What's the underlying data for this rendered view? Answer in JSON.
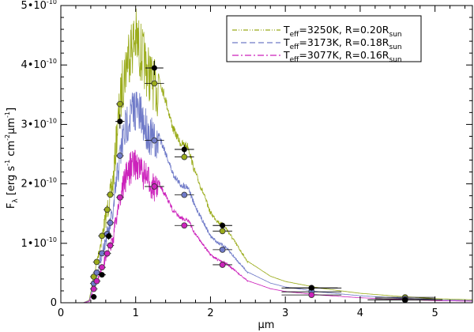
{
  "chart_data": {
    "type": "line",
    "xlabel": "μm",
    "ylabel": "F_λ [erg s^-1 cm^-2 μm^-1]",
    "xlim": [
      0,
      5.5
    ],
    "ylim": [
      0,
      5e-10
    ],
    "grid": false,
    "legend_position": "top-right",
    "x_ticks": [
      0,
      1,
      2,
      3,
      4,
      5
    ],
    "x_tick_labels": [
      "0",
      "1",
      "2",
      "3",
      "4",
      "5"
    ],
    "y_ticks": [
      0,
      1e-10,
      2e-10,
      3e-10,
      4e-10,
      5e-10
    ],
    "y_tick_labels": [
      {
        "mant": "0",
        "exp": ""
      },
      {
        "mant": "1•10",
        "exp": "-10"
      },
      {
        "mant": "2•10",
        "exp": "-10"
      },
      {
        "mant": "3•10",
        "exp": "-10"
      },
      {
        "mant": "4•10",
        "exp": "-10"
      },
      {
        "mant": "5•10",
        "exp": "-10"
      }
    ],
    "series": [
      {
        "name": "Teff=3250K, R=0.20Rsun",
        "legend": {
          "t": "T",
          "tsub": "eff",
          "mid": "=3250K, R=0.20R",
          "rsub": "sun"
        },
        "color": "#9aab1a",
        "dash": "6,2,1,2,1,2",
        "scale": 1.0,
        "points": [
          {
            "x": 0.25,
            "y": 0.0
          },
          {
            "x": 0.3,
            "y": 0.0
          },
          {
            "x": 0.38,
            "y": 5e-12
          },
          {
            "x": 0.42,
            "y": 3.5e-11
          },
          {
            "x": 0.5,
            "y": 9e-11
          },
          {
            "x": 0.6,
            "y": 1.6e-10
          },
          {
            "x": 0.7,
            "y": 2.3e-10
          },
          {
            "x": 0.75,
            "y": 3.2e-10
          },
          {
            "x": 0.82,
            "y": 4.1e-10
          },
          {
            "x": 0.9,
            "y": 4.7e-10
          },
          {
            "x": 1.0,
            "y": 5e-10
          },
          {
            "x": 1.1,
            "y": 4.6e-10
          },
          {
            "x": 1.2,
            "y": 4.25e-10
          },
          {
            "x": 1.3,
            "y": 3.95e-10
          },
          {
            "x": 1.4,
            "y": 3.5e-10
          },
          {
            "x": 1.5,
            "y": 3e-10
          },
          {
            "x": 1.6,
            "y": 2.75e-10
          },
          {
            "x": 1.7,
            "y": 2.7e-10
          },
          {
            "x": 1.78,
            "y": 2.3e-10
          },
          {
            "x": 1.9,
            "y": 1.9e-10
          },
          {
            "x": 2.0,
            "y": 1.55e-10
          },
          {
            "x": 2.1,
            "y": 1.4e-10
          },
          {
            "x": 2.2,
            "y": 1.3e-10
          },
          {
            "x": 2.35,
            "y": 1e-10
          },
          {
            "x": 2.5,
            "y": 7e-11
          },
          {
            "x": 2.8,
            "y": 4.5e-11
          },
          {
            "x": 3.0,
            "y": 3.6e-11
          },
          {
            "x": 3.5,
            "y": 2.4e-11
          },
          {
            "x": 4.0,
            "y": 1.6e-11
          },
          {
            "x": 4.5,
            "y": 1.1e-11
          },
          {
            "x": 5.0,
            "y": 7e-12
          },
          {
            "x": 5.5,
            "y": 5e-12
          }
        ]
      },
      {
        "name": "Teff=3173K, R=0.18Rsun",
        "legend": {
          "t": "T",
          "tsub": "eff",
          "mid": "=3173K, R=0.18R",
          "rsub": "sun"
        },
        "color": "#6f7ac8",
        "dash": "7,4",
        "scale": 0.74,
        "points": []
      },
      {
        "name": "Teff=3077K, R=0.16Rsun",
        "legend": {
          "t": "T",
          "tsub": "eff",
          "mid": "=3077K, R=0.16R",
          "rsub": "sun"
        },
        "color": "#cc22bb",
        "dash": "8,3,2,3",
        "scale": 0.53,
        "points": []
      }
    ],
    "observations": [
      {
        "x": 0.44,
        "y": 1e-11,
        "xerr": 0.04,
        "yerr": 3e-12
      },
      {
        "x": 0.55,
        "y": 4.7e-11,
        "xerr": 0.05,
        "yerr": 4e-12
      },
      {
        "x": 0.64,
        "y": 1.12e-10,
        "xerr": 0.05,
        "yerr": 6e-12
      },
      {
        "x": 0.79,
        "y": 3.05e-10,
        "xerr": 0.06,
        "yerr": 1.2e-11
      },
      {
        "x": 1.25,
        "y": 3.95e-10,
        "xerr": 0.12,
        "yerr": 1.2e-11
      },
      {
        "x": 1.65,
        "y": 2.58e-10,
        "xerr": 0.13,
        "yerr": 8e-12
      },
      {
        "x": 2.16,
        "y": 1.3e-10,
        "xerr": 0.13,
        "yerr": 5e-12
      },
      {
        "x": 3.35,
        "y": 2.5e-11,
        "xerr": 0.35,
        "yerr": 3e-12
      },
      {
        "x": 4.6,
        "y": 5e-12,
        "xerr": 0.5,
        "yerr": 2e-12
      }
    ],
    "synthetic_photometry_x": [
      0.44,
      0.48,
      0.55,
      0.62,
      0.66,
      0.79,
      1.25,
      1.65,
      2.16,
      3.35,
      4.6
    ]
  }
}
